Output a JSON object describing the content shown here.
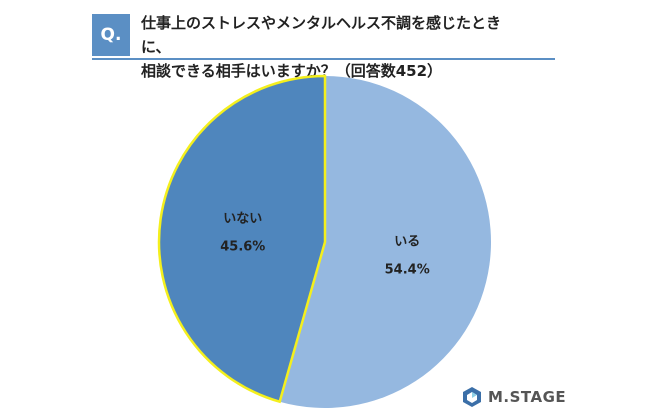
{
  "question": {
    "badge": "Q.",
    "line1": "仕事上のストレスやメンタルヘルス不調を感じたときに、",
    "line2": "相談できる相手はいますか？（回答数452）"
  },
  "brand": {
    "logo_text": "M.STAGE",
    "logo_icon": "mstage-hexagon-icon"
  },
  "colors": {
    "accent": "#5b8fc4",
    "slice_iru": "#95b8e0",
    "slice_inai": "#4f86bd",
    "highlight_outline": "#f4ef1d"
  },
  "chart_data": {
    "type": "pie",
    "title": "",
    "slices": [
      {
        "label": "いる",
        "value": 54.4,
        "value_label": "54.4%",
        "color": "#95b8e0",
        "highlighted": false
      },
      {
        "label": "いない",
        "value": 45.6,
        "value_label": "45.6%",
        "color": "#4f86bd",
        "highlighted": true
      }
    ]
  }
}
